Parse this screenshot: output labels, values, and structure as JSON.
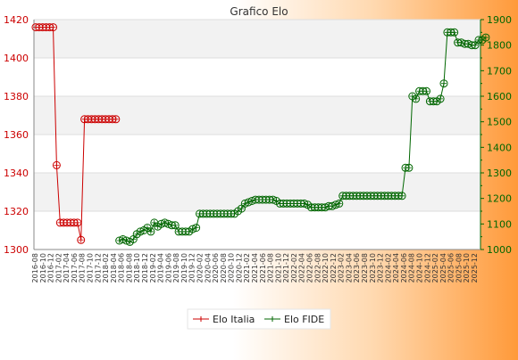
{
  "chart_data": {
    "type": "line",
    "title": "Grafico Elo",
    "grid": true,
    "legend_position": "bottom-center",
    "y_left": {
      "ylim": [
        1300,
        1420
      ],
      "ticks": [
        1300,
        1320,
        1340,
        1360,
        1380,
        1400,
        1420
      ],
      "color": "#cc0000"
    },
    "y_right": {
      "ylim": [
        1000,
        1900
      ],
      "ticks": [
        1000,
        1100,
        1200,
        1300,
        1400,
        1500,
        1600,
        1700,
        1800,
        1900
      ],
      "color": "#006600"
    },
    "x_count": 128,
    "x_labels": [
      "2016-08",
      "2016-10",
      "2016-12",
      "2017-02",
      "2017-04",
      "2017-06",
      "2017-08",
      "2017-10",
      "2017-12",
      "2018-02",
      "2018-04",
      "2018-06",
      "2018-08",
      "2018-10",
      "2018-12",
      "2019-02",
      "2019-04",
      "2019-06",
      "2019-08",
      "2019-10",
      "2019-12",
      "2020-02",
      "2020-04",
      "2020-06",
      "2020-08",
      "2020-10",
      "2020-12",
      "2021-02",
      "2021-04",
      "2021-06",
      "2021-08",
      "2021-10",
      "2021-12",
      "2022-02",
      "2022-04",
      "2022-06",
      "2022-08",
      "2022-10",
      "2022-12",
      "2023-02",
      "2023-04",
      "2023-06",
      "2023-08",
      "2023-10",
      "2023-12",
      "2024-02",
      "2024-04",
      "2024-06",
      "2024-08",
      "2024-10",
      "2024-12",
      "2025-02",
      "2025-04",
      "2025-06",
      "2025-08",
      "2025-10",
      "2025-12"
    ],
    "series": [
      {
        "name": "Elo Italia",
        "axis": "left",
        "color": "#cc0000",
        "start": 0,
        "values": [
          1416,
          1416,
          1416,
          1416,
          1416,
          1416,
          1344,
          1314,
          1314,
          1314,
          1314,
          1314,
          1314,
          1305,
          1368,
          1368,
          1368,
          1368,
          1368,
          1368,
          1368,
          1368,
          1368,
          1368
        ]
      },
      {
        "name": "Elo FIDE",
        "axis": "right",
        "color": "#006600",
        "start": 24,
        "values": [
          1035,
          1040,
          1035,
          1030,
          1040,
          1060,
          1070,
          1075,
          1085,
          1070,
          1105,
          1090,
          1100,
          1105,
          1100,
          1095,
          1095,
          1070,
          1070,
          1070,
          1070,
          1080,
          1085,
          1140,
          1140,
          1140,
          1140,
          1140,
          1140,
          1140,
          1140,
          1140,
          1140,
          1140,
          1150,
          1160,
          1180,
          1185,
          1190,
          1195,
          1195,
          1195,
          1195,
          1195,
          1195,
          1190,
          1180,
          1180,
          1180,
          1180,
          1180,
          1180,
          1180,
          1180,
          1175,
          1165,
          1165,
          1165,
          1165,
          1165,
          1170,
          1170,
          1175,
          1180,
          1210,
          1210,
          1210,
          1210,
          1210,
          1210,
          1210,
          1210,
          1210,
          1210,
          1210,
          1210,
          1210,
          1210,
          1210,
          1210,
          1210,
          1210,
          1320,
          1320,
          1600,
          1590,
          1620,
          1620,
          1620,
          1580,
          1580,
          1580,
          1590,
          1650,
          1850,
          1850,
          1850,
          1810,
          1810,
          1805,
          1805,
          1800,
          1800,
          1820,
          1820,
          1830
        ]
      }
    ]
  }
}
